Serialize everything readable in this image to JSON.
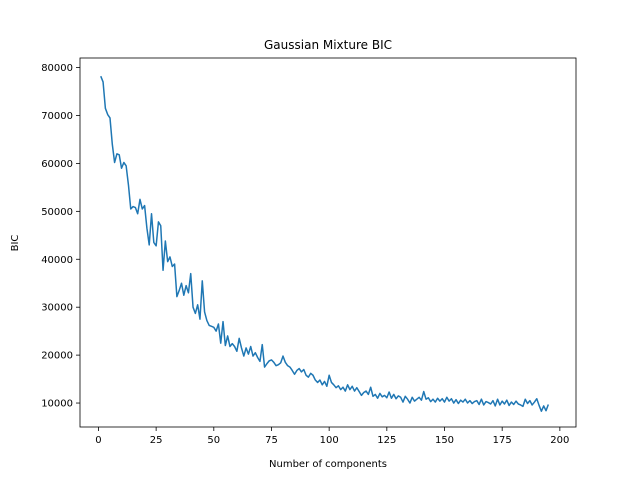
{
  "chart_data": {
    "type": "line",
    "title": "Gaussian Mixture BIC",
    "xlabel": "Number of components",
    "ylabel": "BIC",
    "xlim": [
      -8,
      207
    ],
    "ylim": [
      5000,
      82000
    ],
    "xticks": [
      0,
      25,
      50,
      75,
      100,
      125,
      150,
      175,
      200
    ],
    "yticks": [
      10000,
      20000,
      30000,
      40000,
      50000,
      60000,
      70000,
      80000
    ],
    "grid": false,
    "line_color": "#1f77b4",
    "series": [
      {
        "points": [
          [
            1,
            78200
          ],
          [
            2,
            77000
          ],
          [
            3,
            71500
          ],
          [
            4,
            70200
          ],
          [
            5,
            69500
          ],
          [
            6,
            64000
          ],
          [
            7,
            60200
          ],
          [
            8,
            62000
          ],
          [
            9,
            61800
          ],
          [
            10,
            59000
          ],
          [
            11,
            60200
          ],
          [
            12,
            59500
          ],
          [
            13,
            55500
          ],
          [
            14,
            50500
          ],
          [
            15,
            51000
          ],
          [
            16,
            50800
          ],
          [
            17,
            49500
          ],
          [
            18,
            52500
          ],
          [
            19,
            50500
          ],
          [
            20,
            51200
          ],
          [
            21,
            46500
          ],
          [
            22,
            43000
          ],
          [
            23,
            49500
          ],
          [
            24,
            43500
          ],
          [
            25,
            42800
          ],
          [
            26,
            47800
          ],
          [
            27,
            47000
          ],
          [
            28,
            37700
          ],
          [
            29,
            43800
          ],
          [
            30,
            39500
          ],
          [
            31,
            40500
          ],
          [
            32,
            38500
          ],
          [
            33,
            39000
          ],
          [
            34,
            32200
          ],
          [
            35,
            33500
          ],
          [
            36,
            35000
          ],
          [
            37,
            32500
          ],
          [
            38,
            34500
          ],
          [
            39,
            33000
          ],
          [
            40,
            37000
          ],
          [
            41,
            30000
          ],
          [
            42,
            28700
          ],
          [
            43,
            30500
          ],
          [
            44,
            27500
          ],
          [
            45,
            35500
          ],
          [
            46,
            29000
          ],
          [
            47,
            27200
          ],
          [
            48,
            26200
          ],
          [
            49,
            26000
          ],
          [
            50,
            25800
          ],
          [
            51,
            25000
          ],
          [
            52,
            26500
          ],
          [
            53,
            22500
          ],
          [
            54,
            27000
          ],
          [
            55,
            22000
          ],
          [
            56,
            24000
          ],
          [
            57,
            21800
          ],
          [
            58,
            22400
          ],
          [
            59,
            21800
          ],
          [
            60,
            20800
          ],
          [
            61,
            23500
          ],
          [
            62,
            21500
          ],
          [
            63,
            19800
          ],
          [
            64,
            21500
          ],
          [
            65,
            20200
          ],
          [
            66,
            21800
          ],
          [
            67,
            19800
          ],
          [
            68,
            20500
          ],
          [
            69,
            19500
          ],
          [
            70,
            18700
          ],
          [
            71,
            22200
          ],
          [
            72,
            17500
          ],
          [
            73,
            18200
          ],
          [
            74,
            18800
          ],
          [
            75,
            19000
          ],
          [
            76,
            18500
          ],
          [
            77,
            17800
          ],
          [
            78,
            18000
          ],
          [
            79,
            18400
          ],
          [
            80,
            19800
          ],
          [
            81,
            18500
          ],
          [
            82,
            17800
          ],
          [
            83,
            17500
          ],
          [
            84,
            16800
          ],
          [
            85,
            16000
          ],
          [
            86,
            16800
          ],
          [
            87,
            17200
          ],
          [
            88,
            16500
          ],
          [
            89,
            17000
          ],
          [
            90,
            15800
          ],
          [
            91,
            15400
          ],
          [
            92,
            16200
          ],
          [
            93,
            15800
          ],
          [
            94,
            14800
          ],
          [
            95,
            14300
          ],
          [
            96,
            14800
          ],
          [
            97,
            13800
          ],
          [
            98,
            14500
          ],
          [
            99,
            13500
          ],
          [
            100,
            15800
          ],
          [
            101,
            14300
          ],
          [
            102,
            13800
          ],
          [
            103,
            13200
          ],
          [
            104,
            13600
          ],
          [
            105,
            12800
          ],
          [
            106,
            13300
          ],
          [
            107,
            12500
          ],
          [
            108,
            13800
          ],
          [
            109,
            12800
          ],
          [
            110,
            13500
          ],
          [
            111,
            12500
          ],
          [
            112,
            13200
          ],
          [
            113,
            12400
          ],
          [
            114,
            11600
          ],
          [
            115,
            12200
          ],
          [
            116,
            12500
          ],
          [
            117,
            11800
          ],
          [
            118,
            13300
          ],
          [
            119,
            11400
          ],
          [
            120,
            11800
          ],
          [
            121,
            11000
          ],
          [
            122,
            12000
          ],
          [
            123,
            11300
          ],
          [
            124,
            11600
          ],
          [
            125,
            11100
          ],
          [
            126,
            12300
          ],
          [
            127,
            11000
          ],
          [
            128,
            11800
          ],
          [
            129,
            10900
          ],
          [
            130,
            11500
          ],
          [
            131,
            11200
          ],
          [
            132,
            10200
          ],
          [
            133,
            11400
          ],
          [
            134,
            10800
          ],
          [
            135,
            10000
          ],
          [
            136,
            11200
          ],
          [
            137,
            10400
          ],
          [
            138,
            10800
          ],
          [
            139,
            11200
          ],
          [
            140,
            10600
          ],
          [
            141,
            12400
          ],
          [
            142,
            10800
          ],
          [
            143,
            11100
          ],
          [
            144,
            10300
          ],
          [
            145,
            10800
          ],
          [
            146,
            10200
          ],
          [
            147,
            11000
          ],
          [
            148,
            10400
          ],
          [
            149,
            10900
          ],
          [
            150,
            10200
          ],
          [
            151,
            11200
          ],
          [
            152,
            10400
          ],
          [
            153,
            10900
          ],
          [
            154,
            10000
          ],
          [
            155,
            10700
          ],
          [
            156,
            9900
          ],
          [
            157,
            10600
          ],
          [
            158,
            10200
          ],
          [
            159,
            10800
          ],
          [
            160,
            10000
          ],
          [
            161,
            10500
          ],
          [
            162,
            9900
          ],
          [
            163,
            10300
          ],
          [
            164,
            10500
          ],
          [
            165,
            9700
          ],
          [
            166,
            10800
          ],
          [
            167,
            9600
          ],
          [
            168,
            10300
          ],
          [
            169,
            10100
          ],
          [
            170,
            9800
          ],
          [
            171,
            10500
          ],
          [
            172,
            9400
          ],
          [
            173,
            10800
          ],
          [
            174,
            9600
          ],
          [
            175,
            10400
          ],
          [
            176,
            9800
          ],
          [
            177,
            10600
          ],
          [
            178,
            9500
          ],
          [
            179,
            10200
          ],
          [
            180,
            9700
          ],
          [
            181,
            10400
          ],
          [
            182,
            9800
          ],
          [
            183,
            9600
          ],
          [
            184,
            9300
          ],
          [
            185,
            10800
          ],
          [
            186,
            9900
          ],
          [
            187,
            10500
          ],
          [
            188,
            9600
          ],
          [
            189,
            10200
          ],
          [
            190,
            10900
          ],
          [
            191,
            9500
          ],
          [
            192,
            8300
          ],
          [
            193,
            9400
          ],
          [
            194,
            8400
          ],
          [
            195,
            9700
          ]
        ]
      }
    ]
  }
}
